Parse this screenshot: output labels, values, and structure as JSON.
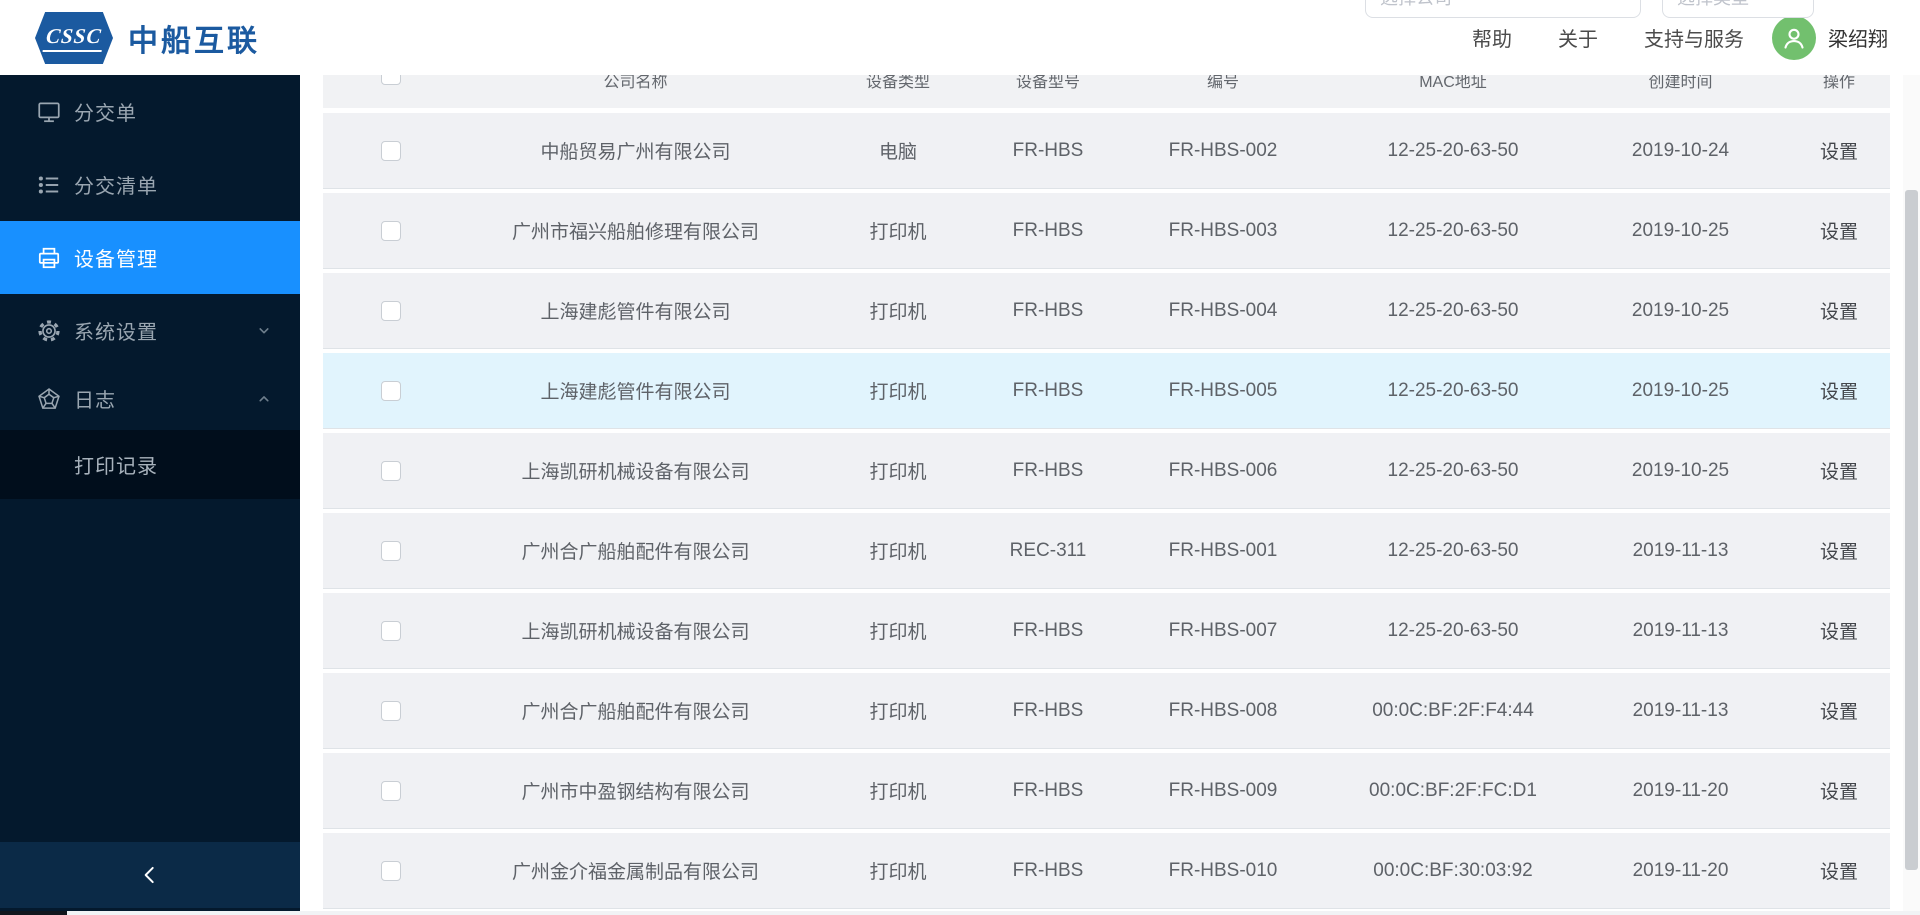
{
  "header": {
    "logo_badge": "CSSC",
    "logo_title": "中船互联",
    "nav_items": [
      "帮助",
      "关于",
      "支持与服务"
    ],
    "user_name": "梁绍翔",
    "filters": [
      {
        "placeholder": "选择公司"
      },
      {
        "placeholder": "选择类型"
      }
    ]
  },
  "sidebar": {
    "items": [
      {
        "key": "dispatch-order",
        "label": "分交单",
        "icon": "monitor-icon",
        "active": false,
        "chevron": null
      },
      {
        "key": "dispatch-list",
        "label": "分交清单",
        "icon": "list-icon",
        "active": false,
        "chevron": null
      },
      {
        "key": "device-management",
        "label": "设备管理",
        "icon": "printer-icon",
        "active": true,
        "chevron": null
      },
      {
        "key": "system-settings",
        "label": "系统设置",
        "icon": "gear-icon",
        "active": false,
        "chevron": "down"
      },
      {
        "key": "logs",
        "label": "日志",
        "icon": "badge-icon",
        "active": false,
        "chevron": "up",
        "children": [
          {
            "key": "print-records",
            "label": "打印记录"
          }
        ]
      }
    ]
  },
  "table": {
    "columns": [
      "公司名称",
      "设备类型",
      "设备型号",
      "编号",
      "MAC地址",
      "创建时间",
      "操作"
    ],
    "action_label": "设置",
    "rows": [
      {
        "company": "中船贸易广州有限公司",
        "type": "电脑",
        "model": "FR-HBS",
        "number": "FR-HBS-002",
        "mac": "12-25-20-63-50",
        "created": "2019-10-24",
        "highlighted": false
      },
      {
        "company": "广州市福兴船舶修理有限公司",
        "type": "打印机",
        "model": "FR-HBS",
        "number": "FR-HBS-003",
        "mac": "12-25-20-63-50",
        "created": "2019-10-25",
        "highlighted": false
      },
      {
        "company": "上海建彪管件有限公司",
        "type": "打印机",
        "model": "FR-HBS",
        "number": "FR-HBS-004",
        "mac": "12-25-20-63-50",
        "created": "2019-10-25",
        "highlighted": false
      },
      {
        "company": "上海建彪管件有限公司",
        "type": "打印机",
        "model": "FR-HBS",
        "number": "FR-HBS-005",
        "mac": "12-25-20-63-50",
        "created": "2019-10-25",
        "highlighted": true
      },
      {
        "company": "上海凯研机械设备有限公司",
        "type": "打印机",
        "model": "FR-HBS",
        "number": "FR-HBS-006",
        "mac": "12-25-20-63-50",
        "created": "2019-10-25",
        "highlighted": false
      },
      {
        "company": "广州合广船舶配件有限公司",
        "type": "打印机",
        "model": "REC-311",
        "number": "FR-HBS-001",
        "mac": "12-25-20-63-50",
        "created": "2019-11-13",
        "highlighted": false
      },
      {
        "company": "上海凯研机械设备有限公司",
        "type": "打印机",
        "model": "FR-HBS",
        "number": "FR-HBS-007",
        "mac": "12-25-20-63-50",
        "created": "2019-11-13",
        "highlighted": false
      },
      {
        "company": "广州合广船舶配件有限公司",
        "type": "打印机",
        "model": "FR-HBS",
        "number": "FR-HBS-008",
        "mac": "00:0C:BF:2F:F4:44",
        "created": "2019-11-13",
        "highlighted": false
      },
      {
        "company": "广州市中盈钢结构有限公司",
        "type": "打印机",
        "model": "FR-HBS",
        "number": "FR-HBS-009",
        "mac": "00:0C:BF:2F:FC:D1",
        "created": "2019-11-20",
        "highlighted": false
      },
      {
        "company": "广州金介福金属制品有限公司",
        "type": "打印机",
        "model": "FR-HBS",
        "number": "FR-HBS-010",
        "mac": "00:0C:BF:30:03:92",
        "created": "2019-11-20",
        "highlighted": false
      }
    ]
  },
  "colors": {
    "accent": "#1890FF",
    "sidebar_bg": "#04192D",
    "submenu_bg": "#010E1C",
    "row_highlight": "#E1F4FD",
    "avatar_green": "#72C06E",
    "logo_blue": "#1B5AA0"
  }
}
